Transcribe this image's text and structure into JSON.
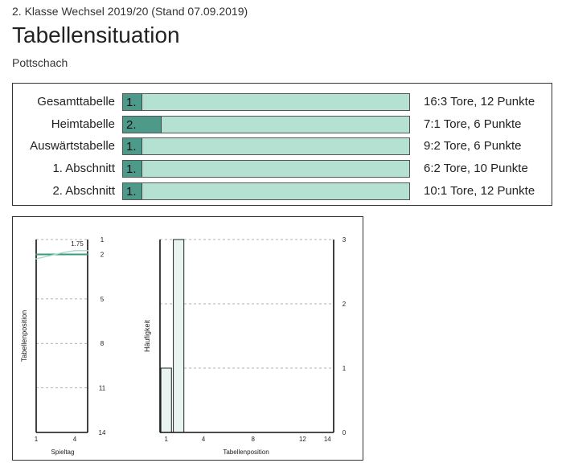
{
  "header": {
    "subtitle": "2. Klasse Wechsel 2019/20 (Stand 07.09.2019)",
    "title": "Tabellensituation",
    "team": "Pottschach"
  },
  "colors": {
    "fill_dark": "#4e9a8a",
    "fill_light": "#b5e1d3",
    "line": "#3a9a80"
  },
  "standings": {
    "max_rank": 14,
    "rows": [
      {
        "label": "Gesamttabelle",
        "rank": 1,
        "rank_label": "1.",
        "stats": "16:3 Tore, 12 Punkte"
      },
      {
        "label": "Heimtabelle",
        "rank": 2,
        "rank_label": "2.",
        "stats": "7:1 Tore, 6 Punkte"
      },
      {
        "label": "Auswärtstabelle",
        "rank": 1,
        "rank_label": "1.",
        "stats": "9:2 Tore, 6 Punkte"
      },
      {
        "label": "1. Abschnitt",
        "rank": 1,
        "rank_label": "1.",
        "stats": "6:2 Tore, 10 Punkte"
      },
      {
        "label": "2. Abschnitt",
        "rank": 1,
        "rank_label": "1.",
        "stats": "10:1 Tore, 12 Punkte"
      }
    ]
  },
  "chart_data": [
    {
      "type": "line",
      "xlabel": "Spieltag",
      "ylabel": "Tabellenposition",
      "xlim": [
        1,
        5
      ],
      "ylim": [
        14,
        1
      ],
      "x_ticks": [
        "1",
        "4"
      ],
      "y_ticks": [
        "1",
        "2",
        "5",
        "8",
        "11",
        "14"
      ],
      "annotation": "1.75",
      "series": [
        {
          "values": [
            {
              "x": 1,
              "y": 2
            },
            {
              "x": 2,
              "y": 2
            },
            {
              "x": 3,
              "y": 2
            },
            {
              "x": 4,
              "y": 2
            },
            {
              "x": 5,
              "y": 2
            }
          ]
        },
        {
          "values": [
            {
              "x": 1,
              "y": 2.3
            },
            {
              "x": 2,
              "y": 2.1
            },
            {
              "x": 3,
              "y": 1.9
            },
            {
              "x": 4,
              "y": 1.75
            },
            {
              "x": 5,
              "y": 1.75
            }
          ]
        }
      ]
    },
    {
      "type": "bar",
      "xlabel": "Tabellenposition",
      "ylabel": "Häufigkeit",
      "xlim": [
        0.5,
        14.5
      ],
      "ylim": [
        0,
        3
      ],
      "x_ticks": [
        "1",
        "4",
        "8",
        "12",
        "14"
      ],
      "y_ticks": [
        "0",
        "1",
        "2",
        "3"
      ],
      "categories": [
        1,
        2
      ],
      "values": [
        1,
        3
      ]
    }
  ]
}
